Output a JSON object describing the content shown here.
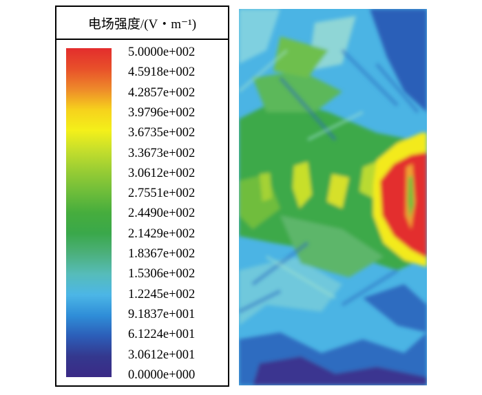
{
  "legend": {
    "title": "电场强度/(V・m⁻¹)",
    "tick_labels": [
      "5.0000e+002",
      "4.5918e+002",
      "4.2857e+002",
      "3.9796e+002",
      "3.6735e+002",
      "3.3673e+002",
      "3.0612e+002",
      "2.7551e+002",
      "2.4490e+002",
      "2.1429e+002",
      "1.8367e+002",
      "1.5306e+002",
      "1.2245e+002",
      "9.1837e+001",
      "6.1224e+001",
      "3.0612e+001",
      "0.0000e+000"
    ],
    "colors": [
      "#e32d2d",
      "#e8502a",
      "#ee8a2a",
      "#f6d21c",
      "#f4f01a",
      "#c4de2c",
      "#97cc34",
      "#6ebd3a",
      "#46ad3d",
      "#3aa84a",
      "#4cb07c",
      "#56bcba",
      "#4cb6e6",
      "#2f8ed8",
      "#2c5eb8",
      "#34388e",
      "#3b2a86"
    ]
  }
}
